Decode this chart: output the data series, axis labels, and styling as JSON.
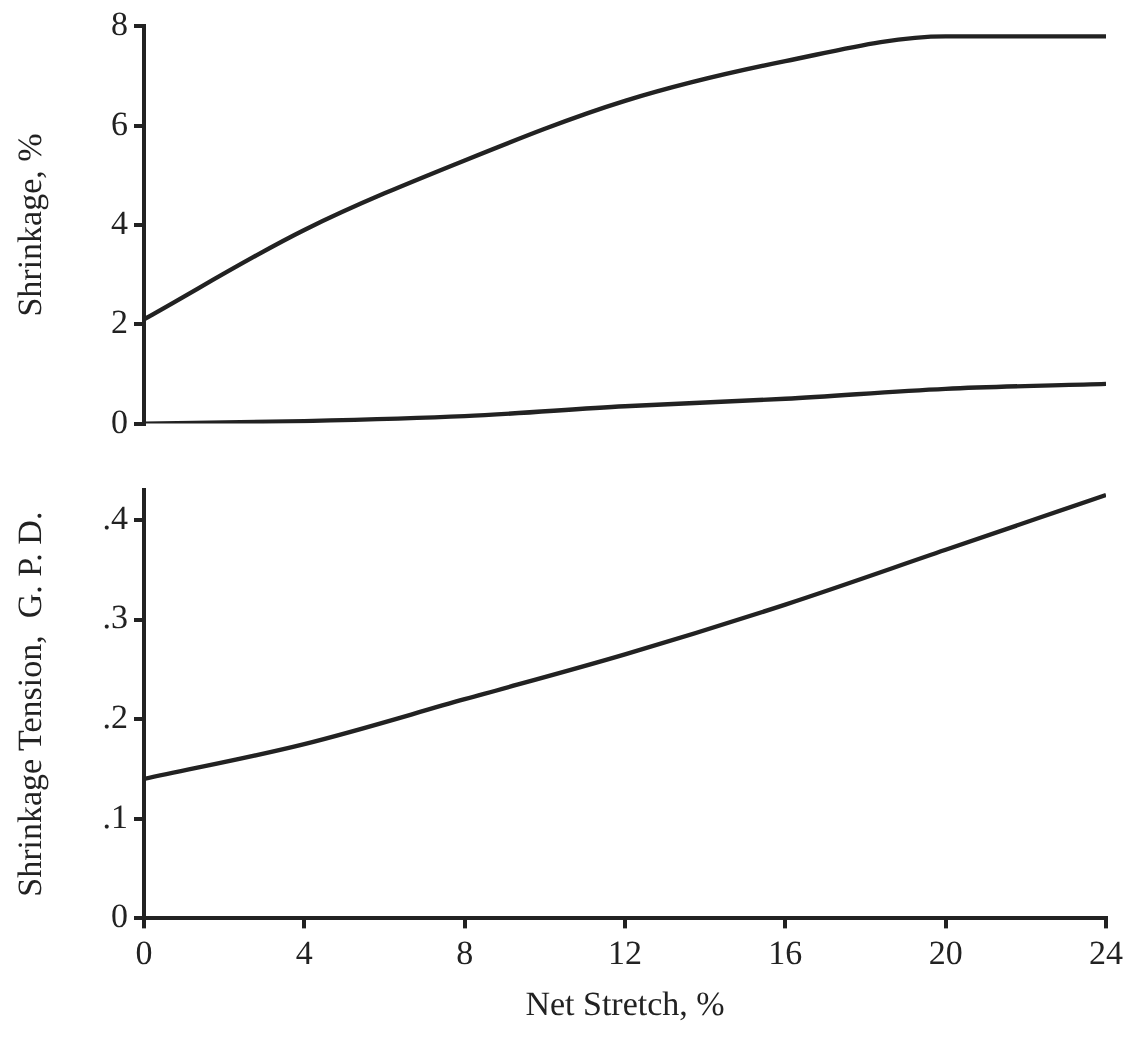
{
  "chart_data": [
    {
      "type": "line",
      "ylabel": "Shrinkage, %",
      "x": [
        0,
        4,
        8,
        12,
        16,
        20,
        24
      ],
      "xlim": [
        0,
        24
      ],
      "ylim": [
        0,
        8
      ],
      "yticks": [
        0,
        2,
        4,
        6,
        8
      ],
      "tick_labels": "y",
      "grid": false,
      "series": [
        {
          "color": "#222222",
          "values": [
            2.1,
            3.9,
            5.3,
            6.5,
            7.3,
            7.8,
            7.8
          ]
        },
        {
          "color": "#222222",
          "values": [
            0,
            0.05,
            0.15,
            0.35,
            0.5,
            0.7,
            0.8
          ]
        }
      ]
    },
    {
      "type": "line",
      "xlabel": "Net Stretch, %",
      "ylabel": "Shrinkage Tension,  G. P. D.",
      "x": [
        0,
        4,
        8,
        12,
        16,
        20,
        24
      ],
      "xlim": [
        0,
        24
      ],
      "xticks": [
        0,
        4,
        8,
        12,
        16,
        20,
        24
      ],
      "ylim": [
        0,
        0.43
      ],
      "yticks": [
        0,
        {
          "value": 0.1,
          "label": ".1"
        },
        {
          "value": 0.2,
          "label": ".2"
        },
        {
          "value": 0.3,
          "label": ".3"
        },
        {
          "value": 0.4,
          "label": ".4"
        }
      ],
      "grid": false,
      "series": [
        {
          "color": "#222222",
          "values": [
            0.14,
            0.175,
            0.22,
            0.265,
            0.315,
            0.37,
            0.425
          ]
        }
      ]
    }
  ]
}
